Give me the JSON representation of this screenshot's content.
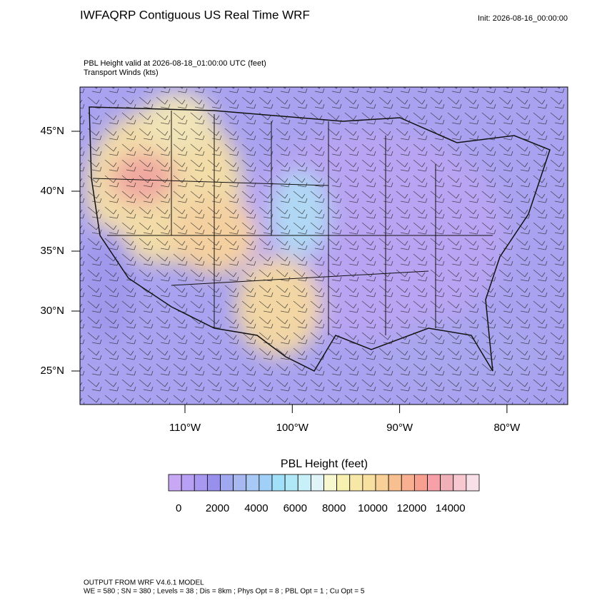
{
  "header": {
    "title": "IWFAQRP Contiguous US Real Time WRF",
    "init": "Init: 2026-08-16_00:00:00"
  },
  "plot": {
    "subtitle_lines": [
      "PBL Height valid at 2026-08-18_01:00:00 UTC   (feet)",
      "Transport Winds   (kts)"
    ]
  },
  "axes": {
    "lat_labels": [
      "45°N",
      "40°N",
      "35°N",
      "30°N",
      "25°N"
    ],
    "lon_labels": [
      "110°W",
      "100°W",
      "90°W",
      "80°W"
    ]
  },
  "colorbar": {
    "title": "PBL Height  (feet)",
    "labels": [
      0,
      2000,
      4000,
      6000,
      8000,
      10000,
      12000,
      14000
    ],
    "colors": [
      "#c8a8f5",
      "#b8a0f5",
      "#a898f0",
      "#9890ec",
      "#a0a8f0",
      "#a8b8f0",
      "#a8c8f5",
      "#a0d0f8",
      "#a0e0f8",
      "#b0e8f8",
      "#c8f0f8",
      "#e0f4f8",
      "#f8f8d0",
      "#f8f0b0",
      "#f8e8a8",
      "#f8e0a0",
      "#f8d098",
      "#f8c090",
      "#f8b090",
      "#f8a090",
      "#f8a0a8",
      "#f0b0b8",
      "#f8c8d0",
      "#f8e0e8"
    ]
  },
  "footer": {
    "lines": [
      "OUTPUT FROM WRF V4.6.1 MODEL",
      "WE = 580 ; SN = 380 ; Levels = 38 ; Dis = 8km ; Phys Opt = 8 ; PBL Opt = 1 ; Cu Opt = 5"
    ]
  }
}
